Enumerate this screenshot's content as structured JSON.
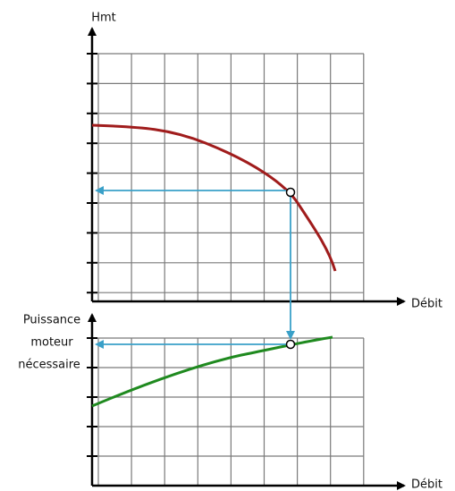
{
  "top_chart": {
    "y_label": "Hmt",
    "x_label": "Débit"
  },
  "bottom_chart": {
    "y_label": [
      "Puissance",
      "moteur",
      "nécessaire"
    ],
    "x_label": "Débit"
  }
}
